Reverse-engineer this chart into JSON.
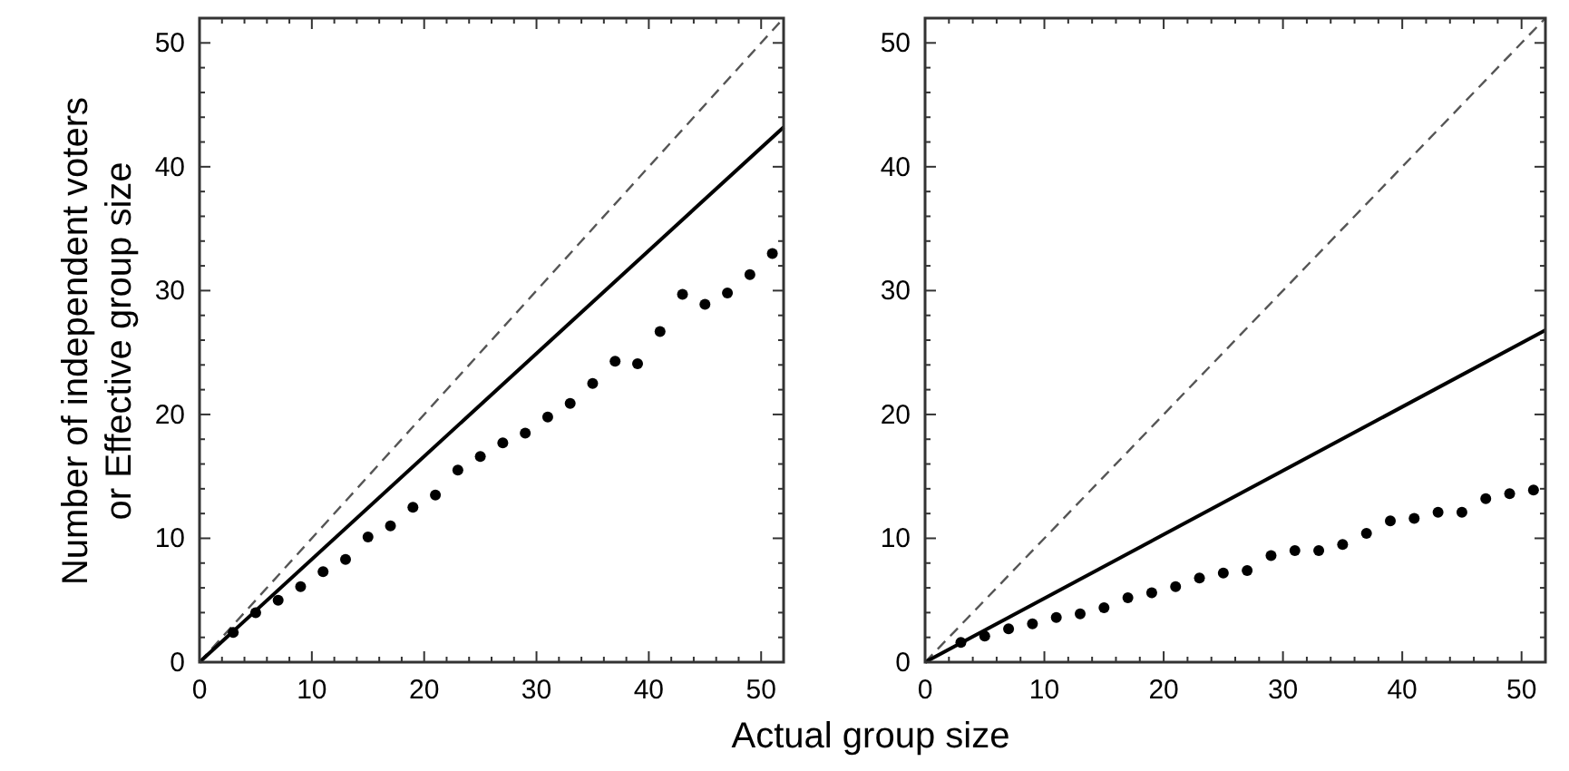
{
  "chart_data": [
    {
      "type": "scatter",
      "xlabel": "Actual group size",
      "ylabel": "Number of independent voters\nor Effective group size",
      "xlim": [
        0,
        52
      ],
      "ylim": [
        0,
        52
      ],
      "xticks": [
        0,
        {
          "value": 2,
          "label": null
        },
        {
          "value": 4,
          "label": null
        },
        {
          "value": 6,
          "label": null
        },
        {
          "value": 8,
          "label": null
        },
        10,
        {
          "value": 12,
          "label": null
        },
        {
          "value": 14,
          "label": null
        },
        {
          "value": 16,
          "label": null
        },
        {
          "value": 18,
          "label": null
        },
        20,
        {
          "value": 22,
          "label": null
        },
        {
          "value": 24,
          "label": null
        },
        {
          "value": 26,
          "label": null
        },
        {
          "value": 28,
          "label": null
        },
        30,
        {
          "value": 32,
          "label": null
        },
        {
          "value": 34,
          "label": null
        },
        {
          "value": 36,
          "label": null
        },
        {
          "value": 38,
          "label": null
        },
        40,
        {
          "value": 42,
          "label": null
        },
        {
          "value": 44,
          "label": null
        },
        {
          "value": 46,
          "label": null
        },
        {
          "value": 48,
          "label": null
        },
        50
      ],
      "yticks": [
        0,
        {
          "value": 2,
          "label": null
        },
        {
          "value": 4,
          "label": null
        },
        {
          "value": 6,
          "label": null
        },
        {
          "value": 8,
          "label": null
        },
        10,
        {
          "value": 12,
          "label": null
        },
        {
          "value": 14,
          "label": null
        },
        {
          "value": 16,
          "label": null
        },
        {
          "value": 18,
          "label": null
        },
        20,
        {
          "value": 22,
          "label": null
        },
        {
          "value": 24,
          "label": null
        },
        {
          "value": 26,
          "label": null
        },
        {
          "value": 28,
          "label": null
        },
        30,
        {
          "value": 32,
          "label": null
        },
        {
          "value": 34,
          "label": null
        },
        {
          "value": 36,
          "label": null
        },
        {
          "value": 38,
          "label": null
        },
        40,
        {
          "value": 42,
          "label": null
        },
        {
          "value": 44,
          "label": null
        },
        {
          "value": 46,
          "label": null
        },
        {
          "value": 48,
          "label": null
        },
        50
      ],
      "grid": false,
      "series": [
        {
          "type": "line",
          "color": "#555555",
          "line_style": "dashed",
          "x": [
            0,
            52
          ],
          "values": [
            0,
            52
          ]
        },
        {
          "type": "line",
          "color": "#000000",
          "line_style": "solid",
          "x": [
            0,
            52
          ],
          "values": [
            0,
            43.2
          ]
        },
        {
          "color": "#000000",
          "marker": "circle",
          "x": [
            3,
            5,
            7,
            9,
            11,
            13,
            15,
            17,
            19,
            21,
            23,
            25,
            27,
            29,
            31,
            33,
            35,
            37,
            39,
            41,
            43,
            45,
            47,
            49,
            51
          ],
          "values": [
            2.4,
            4.0,
            5.0,
            6.1,
            7.3,
            8.3,
            10.1,
            11.0,
            12.5,
            13.5,
            15.5,
            16.6,
            17.7,
            18.5,
            19.8,
            20.9,
            22.5,
            24.3,
            24.1,
            26.7,
            29.7,
            28.9,
            29.8,
            31.3,
            33.0
          ]
        }
      ]
    },
    {
      "type": "scatter",
      "xlim": [
        0,
        52
      ],
      "ylim": [
        0,
        52
      ],
      "xticks": [
        0,
        {
          "value": 2,
          "label": null
        },
        {
          "value": 4,
          "label": null
        },
        {
          "value": 6,
          "label": null
        },
        {
          "value": 8,
          "label": null
        },
        10,
        {
          "value": 12,
          "label": null
        },
        {
          "value": 14,
          "label": null
        },
        {
          "value": 16,
          "label": null
        },
        {
          "value": 18,
          "label": null
        },
        20,
        {
          "value": 22,
          "label": null
        },
        {
          "value": 24,
          "label": null
        },
        {
          "value": 26,
          "label": null
        },
        {
          "value": 28,
          "label": null
        },
        30,
        {
          "value": 32,
          "label": null
        },
        {
          "value": 34,
          "label": null
        },
        {
          "value": 36,
          "label": null
        },
        {
          "value": 38,
          "label": null
        },
        40,
        {
          "value": 42,
          "label": null
        },
        {
          "value": 44,
          "label": null
        },
        {
          "value": 46,
          "label": null
        },
        {
          "value": 48,
          "label": null
        },
        50
      ],
      "yticks": [
        0,
        {
          "value": 2,
          "label": null
        },
        {
          "value": 4,
          "label": null
        },
        {
          "value": 6,
          "label": null
        },
        {
          "value": 8,
          "label": null
        },
        10,
        {
          "value": 12,
          "label": null
        },
        {
          "value": 14,
          "label": null
        },
        {
          "value": 16,
          "label": null
        },
        {
          "value": 18,
          "label": null
        },
        20,
        {
          "value": 22,
          "label": null
        },
        {
          "value": 24,
          "label": null
        },
        {
          "value": 26,
          "label": null
        },
        {
          "value": 28,
          "label": null
        },
        30,
        {
          "value": 32,
          "label": null
        },
        {
          "value": 34,
          "label": null
        },
        {
          "value": 36,
          "label": null
        },
        {
          "value": 38,
          "label": null
        },
        40,
        {
          "value": 42,
          "label": null
        },
        {
          "value": 44,
          "label": null
        },
        {
          "value": 46,
          "label": null
        },
        {
          "value": 48,
          "label": null
        },
        50
      ],
      "grid": false,
      "series": [
        {
          "type": "line",
          "color": "#555555",
          "line_style": "dashed",
          "x": [
            0,
            52
          ],
          "values": [
            0,
            52
          ]
        },
        {
          "type": "line",
          "color": "#000000",
          "line_style": "solid",
          "x": [
            0,
            52
          ],
          "values": [
            0,
            26.8
          ]
        },
        {
          "color": "#000000",
          "marker": "circle",
          "x": [
            3,
            5,
            7,
            9,
            11,
            13,
            15,
            17,
            19,
            21,
            23,
            25,
            27,
            29,
            31,
            33,
            35,
            37,
            39,
            41,
            43,
            45,
            47,
            49,
            51
          ],
          "values": [
            1.6,
            2.1,
            2.7,
            3.1,
            3.6,
            3.9,
            4.4,
            5.2,
            5.6,
            6.1,
            6.8,
            7.2,
            7.4,
            8.6,
            9.0,
            9.0,
            9.5,
            10.4,
            11.4,
            11.6,
            12.1,
            12.1,
            13.2,
            13.6,
            13.9
          ]
        }
      ]
    }
  ]
}
